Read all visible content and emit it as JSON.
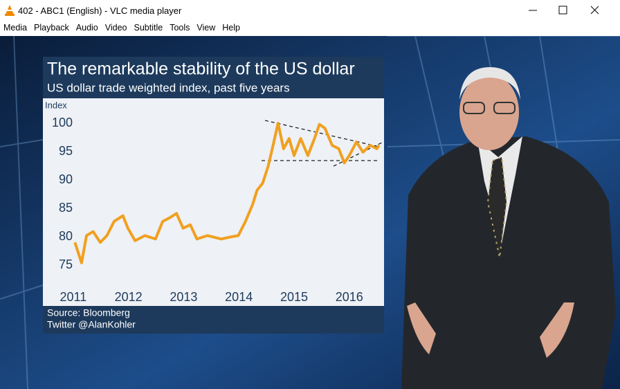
{
  "window": {
    "title": "402 - ABC1 (English) - VLC media player"
  },
  "menu": {
    "items": [
      "Media",
      "Playback",
      "Audio",
      "Video",
      "Subtitle",
      "Tools",
      "View",
      "Help"
    ]
  },
  "video": {
    "chart": {
      "type": "line",
      "title": "The remarkable stability of the US dollar",
      "subtitle": "US dollar trade weighted index, past five years",
      "ylabel": "Index",
      "source": "Source: Bloomberg",
      "credit": "Twitter @AlanKohler",
      "x": [
        2011.03,
        2011.15,
        2011.24,
        2011.36,
        2011.49,
        2011.61,
        2011.74,
        2011.9,
        2011.99,
        2012.12,
        2012.3,
        2012.49,
        2012.62,
        2012.74,
        2012.87,
        2012.99,
        2013.12,
        2013.24,
        2013.43,
        2013.68,
        2013.87,
        2013.99,
        2014.12,
        2014.25,
        2014.33,
        2014.43,
        2014.53,
        2014.62,
        2014.71,
        2014.81,
        2014.91,
        2015.0,
        2015.12,
        2015.25,
        2015.37,
        2015.46,
        2015.56,
        2015.69,
        2015.81,
        2015.91,
        2016.0,
        2016.13,
        2016.25,
        2016.38,
        2016.5,
        2016.54
      ],
      "series": [
        {
          "color": "#f0a020",
          "values": [
            79.0,
            75.4,
            80.2,
            80.9,
            79.0,
            80.2,
            82.7,
            83.7,
            81.5,
            79.3,
            80.2,
            79.6,
            82.7,
            83.3,
            84.1,
            81.5,
            82.1,
            79.6,
            80.2,
            79.6,
            80.0,
            80.2,
            82.7,
            85.7,
            88.2,
            89.4,
            92.4,
            96.1,
            100,
            95.5,
            97.3,
            94.3,
            97.3,
            94.3,
            97.3,
            99.8,
            99.1,
            96.1,
            95.5,
            93.0,
            94.3,
            96.7,
            94.9,
            96.1,
            95.5,
            96.1
          ]
        }
      ],
      "xlim": [
        2010.45,
        2016.63
      ],
      "xticks": [
        2011,
        2012,
        2013,
        2014,
        2015,
        2016
      ],
      "ylim": [
        71,
        104
      ],
      "yticks": [
        75,
        80,
        85,
        90,
        95,
        100
      ],
      "grid": false
    }
  }
}
